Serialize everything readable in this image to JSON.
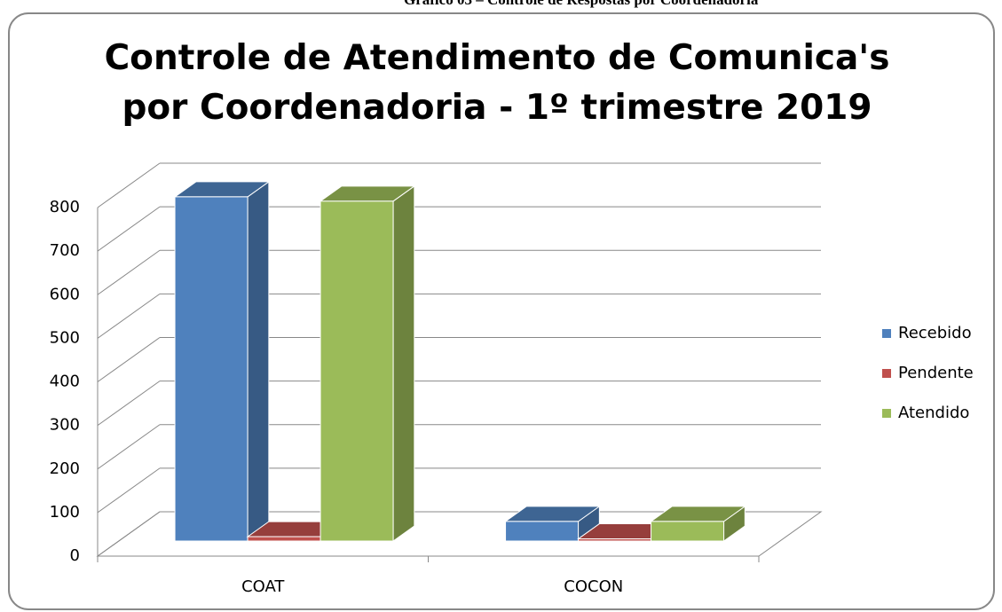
{
  "caption": "Gráfico 03 – Controle de Respostas por Coordenadoria",
  "chart_data": {
    "type": "bar3d",
    "title": "Controle de Atendimento de Comunica's por Coordenadoria - 1º trimestre 2019",
    "categories": [
      "COAT",
      "COCON"
    ],
    "series": [
      {
        "name": "Recebido",
        "color": "#4f81bd",
        "values": [
          790,
          45
        ]
      },
      {
        "name": "Pendente",
        "color": "#c0504d",
        "values": [
          10,
          5
        ]
      },
      {
        "name": "Atendido",
        "color": "#9bbb59",
        "values": [
          780,
          45
        ]
      }
    ],
    "ylim": [
      0,
      800
    ],
    "yticks": [
      0,
      100,
      200,
      300,
      400,
      500,
      600,
      700,
      800
    ],
    "grid": true,
    "legend": "right"
  }
}
